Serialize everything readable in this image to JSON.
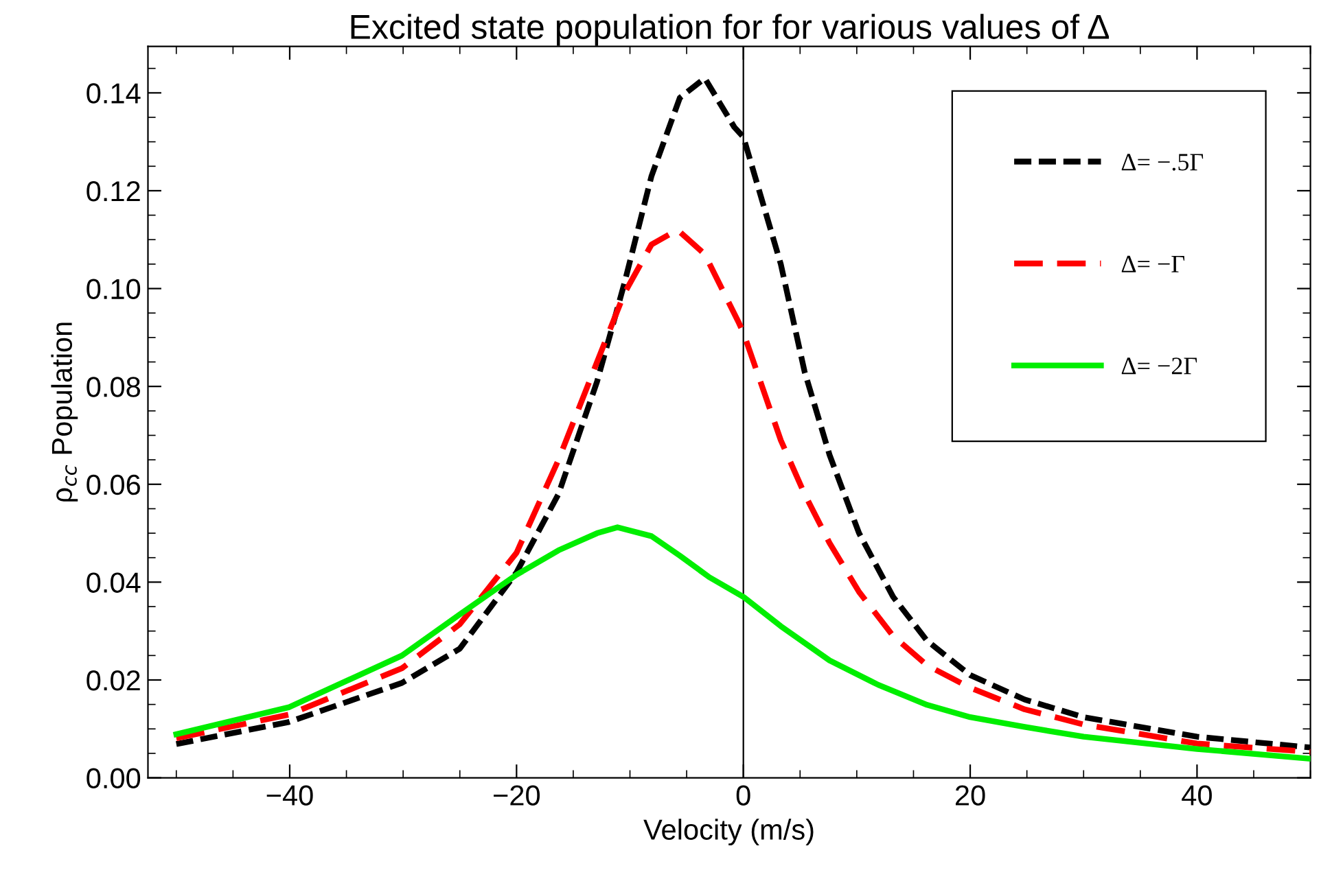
{
  "chart_data": {
    "type": "line",
    "title": "Excited state population for for various values of Δ",
    "xlabel": "Velocity (m/s)",
    "ylabel": "ρ$_{cc}$ Population",
    "xlim": [
      -52.5,
      50
    ],
    "ylim": [
      0,
      0.1495
    ],
    "xticks": [
      {
        "value": -40,
        "label": "−40"
      },
      {
        "value": -20,
        "label": "−20"
      },
      0,
      20,
      40
    ],
    "yticks": [
      {
        "value": 0,
        "label": "0.00"
      },
      {
        "value": 0.02,
        "label": "0.02"
      },
      {
        "value": 0.04,
        "label": "0.04"
      },
      {
        "value": 0.06,
        "label": "0.06"
      },
      {
        "value": 0.08,
        "label": "0.08"
      },
      {
        "value": 0.1,
        "label": "0.10"
      },
      {
        "value": 0.12,
        "label": "0.12"
      },
      {
        "value": 0.14,
        "label": "0.14"
      }
    ],
    "grid": false,
    "legend": "top right",
    "ref_lines": [
      {
        "axis": "x",
        "value": 0,
        "color": "#000000"
      }
    ],
    "series": [
      {
        "name": "Δ= −.5Γ",
        "color": "#000000",
        "line_style": "dashed",
        "x": [
          -50,
          -40.1,
          -30.1,
          -25,
          -20,
          -16.3,
          -12.9,
          -10.5,
          -8.1,
          -5.6,
          -3.4,
          -0.8,
          0,
          3.3,
          5.4,
          7.6,
          10.2,
          13.2,
          16.2,
          20,
          24.8,
          30,
          40,
          50
        ],
        "values": [
          0.0069,
          0.0114,
          0.0194,
          0.0264,
          0.042,
          0.058,
          0.081,
          0.101,
          0.123,
          0.139,
          0.143,
          0.133,
          0.131,
          0.105,
          0.083,
          0.066,
          0.05,
          0.037,
          0.028,
          0.021,
          0.016,
          0.0124,
          0.0084,
          0.0062
        ]
      },
      {
        "name": "Δ= −Γ",
        "color": "#ff0000",
        "line_style": "dashed",
        "x": [
          -50,
          -40.1,
          -30.1,
          -25,
          -20,
          -16.3,
          -12.9,
          -10.5,
          -8.1,
          -5.8,
          -3.4,
          -0.4,
          0,
          3.3,
          5.4,
          7.6,
          10.2,
          13.2,
          16.2,
          20,
          24.8,
          30,
          40,
          50
        ],
        "values": [
          0.0081,
          0.0129,
          0.0224,
          0.0314,
          0.046,
          0.065,
          0.085,
          0.099,
          0.109,
          0.112,
          0.107,
          0.093,
          0.091,
          0.069,
          0.058,
          0.048,
          0.038,
          0.029,
          0.023,
          0.0184,
          0.014,
          0.0109,
          0.007,
          0.0053
        ]
      },
      {
        "name": "Δ= −2Γ",
        "color": "#00ee00",
        "line_style": "solid",
        "x": [
          -50,
          -40.1,
          -30.1,
          -25,
          -20,
          -16.3,
          -12.9,
          -11.1,
          -8.1,
          -5.6,
          -3,
          0,
          3.3,
          7.6,
          11.9,
          16.2,
          20,
          24.8,
          30,
          40,
          50
        ],
        "values": [
          0.0089,
          0.0144,
          0.025,
          0.0334,
          0.0415,
          0.0465,
          0.05,
          0.0512,
          0.0494,
          0.0454,
          0.041,
          0.037,
          0.031,
          0.024,
          0.019,
          0.0149,
          0.0124,
          0.0104,
          0.0084,
          0.0059,
          0.0039
        ]
      }
    ]
  }
}
